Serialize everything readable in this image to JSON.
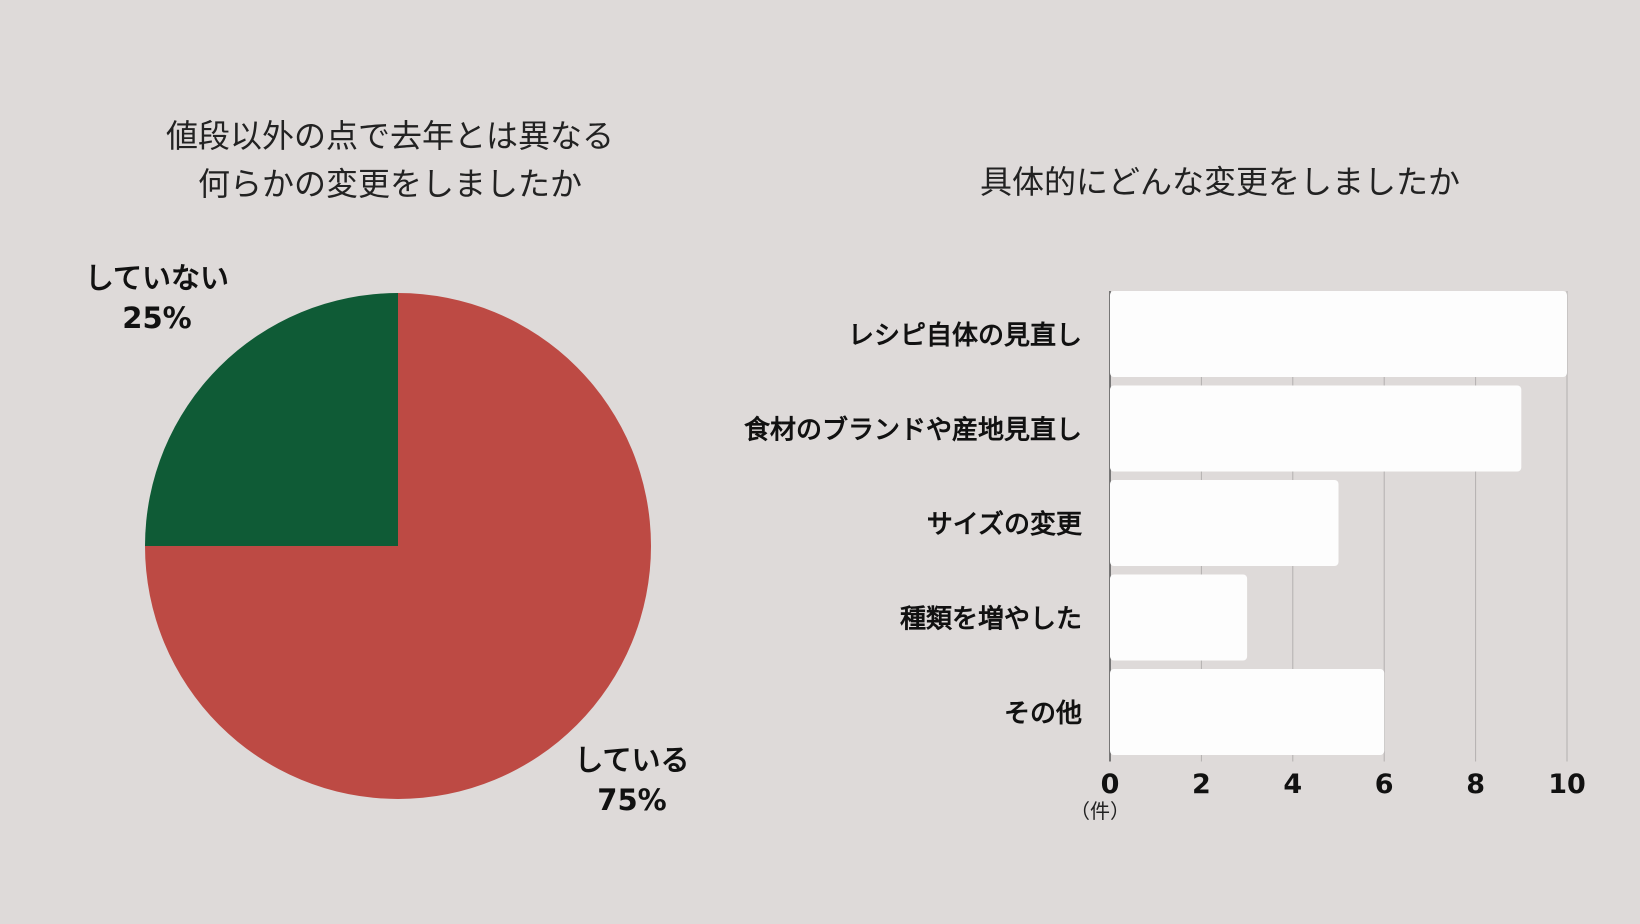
{
  "chart_data": [
    {
      "type": "pie",
      "title_lines": [
        "値段以外の点で去年とは異なる",
        "何らかの変更をしましたか"
      ],
      "slices": [
        {
          "label": "している",
          "value": 75,
          "pct_label": "75%",
          "color": "#bd4a44"
        },
        {
          "label": "していない",
          "value": 25,
          "pct_label": "25%",
          "color": "#0f5b36"
        }
      ]
    },
    {
      "type": "bar",
      "orientation": "horizontal",
      "title_lines": [
        "具体的にどんな変更をしましたか"
      ],
      "categories": [
        "レシピ自体の見直し",
        "食材のブランドや産地見直し",
        "サイズの変更",
        "種類を増やした",
        "その他"
      ],
      "values": [
        10,
        9,
        5,
        3,
        6
      ],
      "xlim": [
        0,
        10
      ],
      "xticks": [
        "0",
        "2",
        "4",
        "6",
        "8",
        "10"
      ],
      "xunit": "（件）",
      "bar_color": "#fdfdfd",
      "grid": true
    }
  ]
}
